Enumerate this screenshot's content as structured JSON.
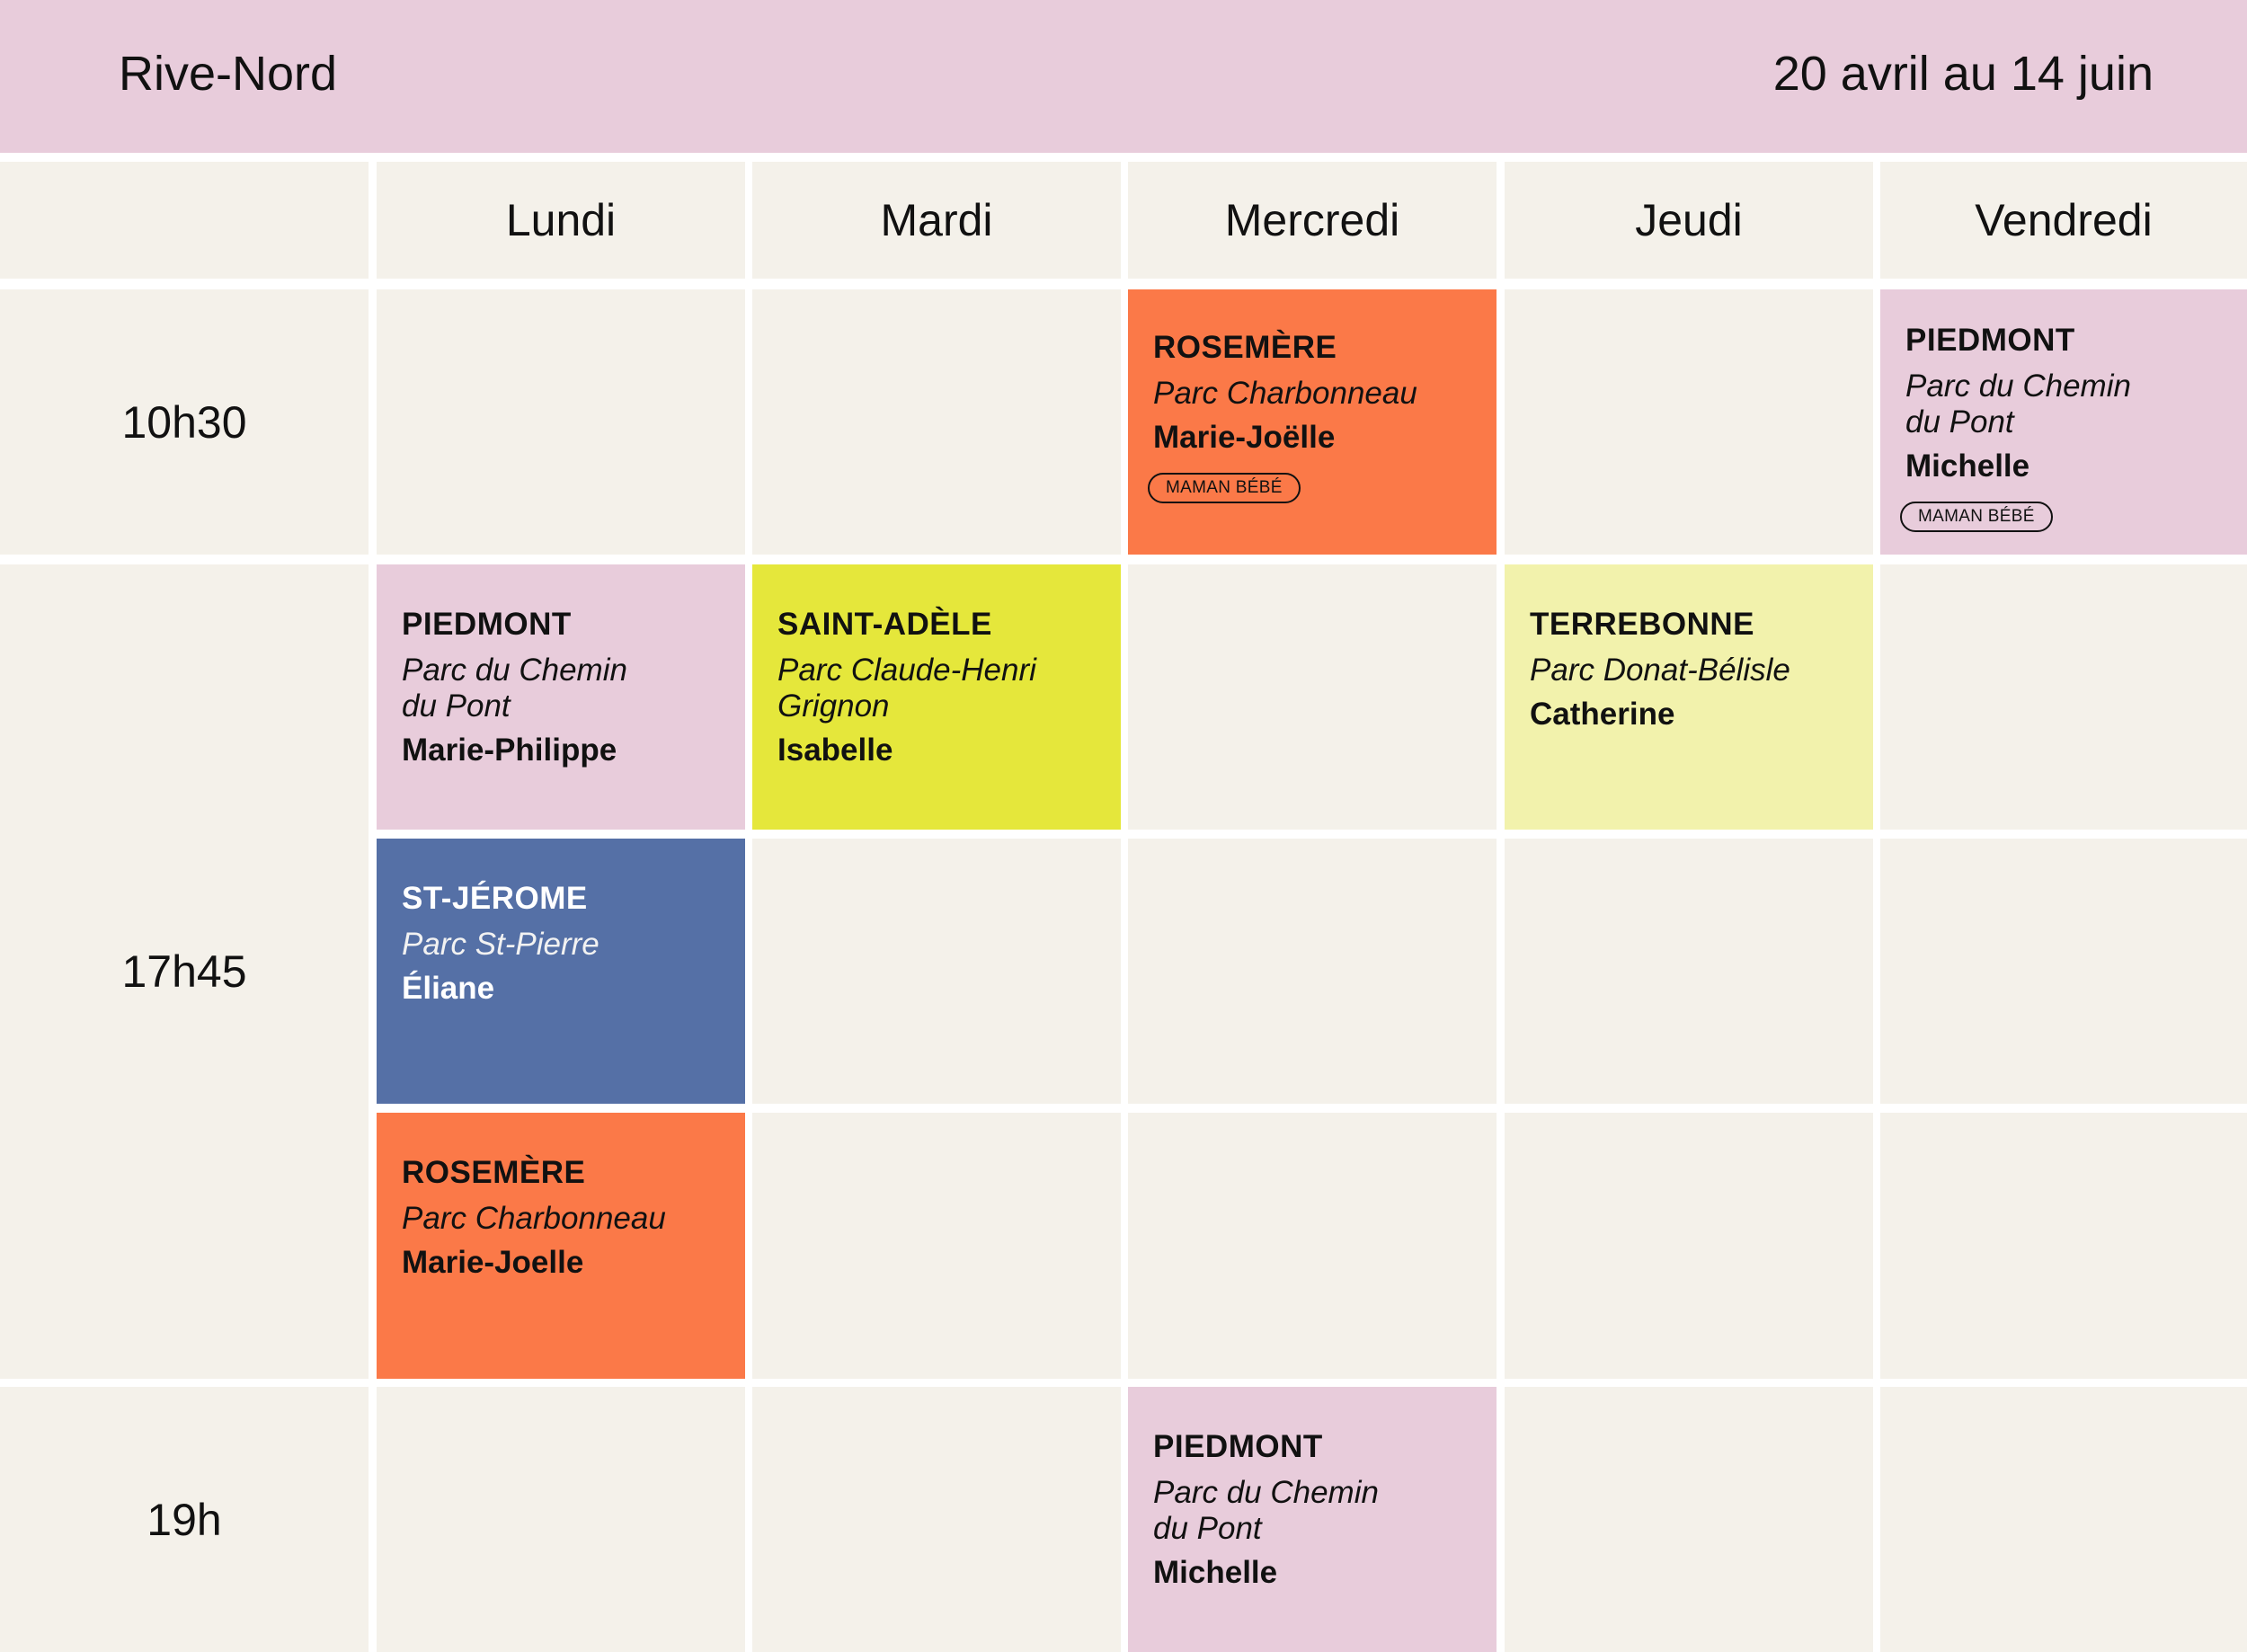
{
  "header": {
    "region": "Rive-Nord",
    "dates": "20 avril au 14 juin"
  },
  "days": [
    "Lundi",
    "Mardi",
    "Mercredi",
    "Jeudi",
    "Vendredi"
  ],
  "times": [
    "10h30",
    "17h45",
    "19h"
  ],
  "colors": {
    "header": "#e8ccdb",
    "cell": "#f4f1ea",
    "orange": "#fb7948",
    "pink": "#e8ccdb",
    "lime": "#e5e73b",
    "pale_yellow": "#f2f2ac",
    "blue": "#5570a6"
  },
  "events": {
    "wed_1030": {
      "city": "ROSEMÈRE",
      "park": "Parc Charbonneau",
      "person": "Marie-Joëlle",
      "tag": "MAMAN BÉBÉ"
    },
    "fri_1030": {
      "city": "PIEDMONT",
      "park": "Parc du Chemin\ndu Pont",
      "person": "Michelle",
      "tag": "MAMAN BÉBÉ"
    },
    "mon_1745_a": {
      "city": "PIEDMONT",
      "park": "Parc du Chemin\ndu Pont",
      "person": "Marie-Philippe"
    },
    "tue_1745": {
      "city": "SAINT-ADÈLE",
      "park": "Parc Claude-Henri\nGrignon",
      "person": "Isabelle"
    },
    "thu_1745": {
      "city": "TERREBONNE",
      "park": "Parc Donat-Bélisle",
      "person": "Catherine"
    },
    "mon_1745_b": {
      "city": "ST-JÉROME",
      "park": "Parc St-Pierre",
      "person": "Éliane"
    },
    "mon_1745_c": {
      "city": "ROSEMÈRE",
      "park": "Parc Charbonneau",
      "person": "Marie-Joelle"
    },
    "wed_1900": {
      "city": "PIEDMONT",
      "park": "Parc du Chemin\ndu Pont",
      "person": "Michelle"
    }
  }
}
